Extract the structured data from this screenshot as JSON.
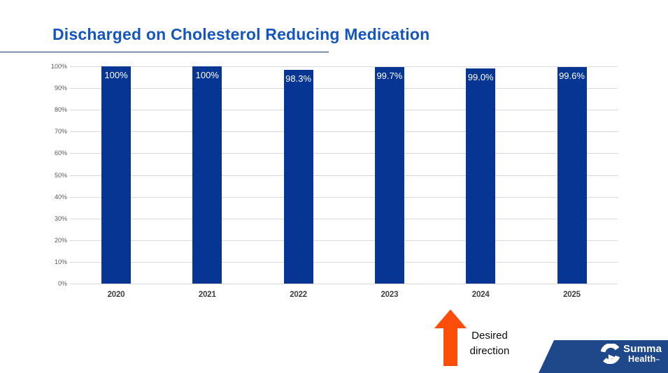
{
  "slide_title": "Discharged on Cholesterol Reducing Medication",
  "chart_data": {
    "type": "bar",
    "title": "Discharged on Cholesterol Reducing Medication",
    "categories": [
      "2020",
      "2021",
      "2022",
      "2023",
      "2024",
      "2025"
    ],
    "values": [
      100,
      100,
      98.3,
      99.7,
      99.0,
      99.6
    ],
    "bar_labels": [
      "100%",
      "100%",
      "98.3%",
      "99.7%",
      "99.0%",
      "99.6%"
    ],
    "y_ticks": [
      "100%",
      "90%",
      "80%",
      "70%",
      "60%",
      "50%",
      "40%",
      "30%",
      "20%",
      "10%",
      "0%"
    ],
    "ylim": [
      0,
      100
    ],
    "grid": true,
    "legend_position": "none",
    "bar_color": "#073594",
    "value_label_color": "#FFFFFF"
  },
  "annotation": {
    "arrow_icon": "up-arrow",
    "arrow_color": "#FC4E0A",
    "text_line1": "Desired",
    "text_line2": "direction"
  },
  "logo": {
    "line1": "Summa",
    "line2": "Health",
    "trademark": "™"
  },
  "colors": {
    "title": "#1455BE",
    "underline": "#1F3864",
    "bar": "#073594",
    "grid": "#D9D9D9",
    "tick": "#595959",
    "year": "#404040",
    "arrow": "#FC4E0A",
    "band": "#1E488A",
    "value-label": "#FFFFFF"
  }
}
